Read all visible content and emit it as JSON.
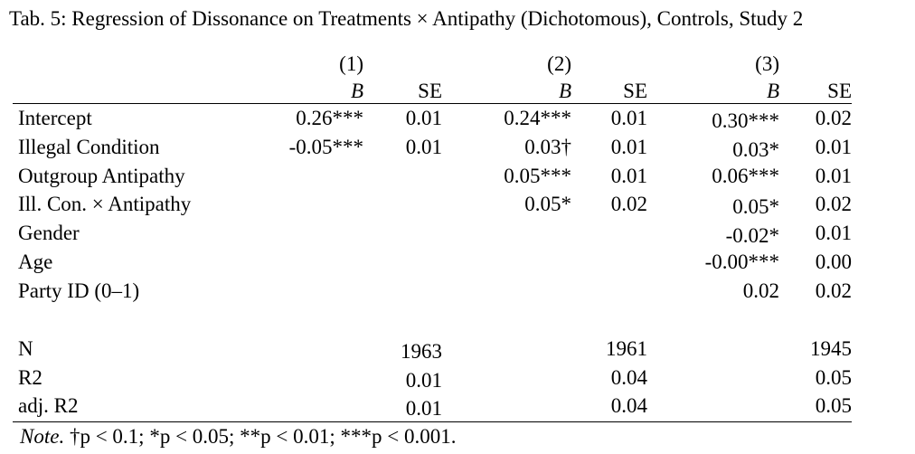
{
  "title": "Tab. 5: Regression of Dissonance on Treatments × Antipathy (Dichotomous), Controls, Study 2",
  "models": [
    "(1)",
    "(2)",
    "(3)"
  ],
  "col_b": "B",
  "col_se": "SE",
  "rows": [
    {
      "label": "Intercept",
      "m1_b": "0.26***",
      "m1_se": "0.01",
      "m2_b": "0.24***",
      "m2_se": "0.01",
      "m3_b": "0.30***",
      "m3_se": "0.02"
    },
    {
      "label": "Illegal Condition",
      "m1_b": "-0.05***",
      "m1_se": "0.01",
      "m2_b": "0.03†",
      "m2_se": "0.01",
      "m3_b": "0.03*",
      "m3_se": "0.01"
    },
    {
      "label": "Outgroup Antipathy",
      "m1_b": "",
      "m1_se": "",
      "m2_b": "0.05***",
      "m2_se": "0.01",
      "m3_b": "0.06***",
      "m3_se": "0.01"
    },
    {
      "label": "Ill. Con. × Antipathy",
      "m1_b": "",
      "m1_se": "",
      "m2_b": "0.05*",
      "m2_se": "0.02",
      "m3_b": "0.05*",
      "m3_se": "0.02"
    },
    {
      "label": "Gender",
      "m1_b": "",
      "m1_se": "",
      "m2_b": "",
      "m2_se": "",
      "m3_b": "-0.02*",
      "m3_se": "0.01"
    },
    {
      "label": "Age",
      "m1_b": "",
      "m1_se": "",
      "m2_b": "",
      "m2_se": "",
      "m3_b": "-0.00***",
      "m3_se": "0.00"
    },
    {
      "label": "Party ID (0–1)",
      "m1_b": "",
      "m1_se": "",
      "m2_b": "",
      "m2_se": "",
      "m3_b": "0.02",
      "m3_se": "0.02"
    }
  ],
  "stats": [
    {
      "label": "N",
      "m1": "1963",
      "m2": "1961",
      "m3": "1945"
    },
    {
      "label": "R2",
      "m1": "0.01",
      "m2": "0.04",
      "m3": "0.05"
    },
    {
      "label": "adj. R2",
      "m1": "0.01",
      "m2": "0.04",
      "m3": "0.05"
    }
  ],
  "note": {
    "label": "Note.",
    "text": " †p < 0.1; *p < 0.05; **p < 0.01; ***p < 0.001."
  }
}
